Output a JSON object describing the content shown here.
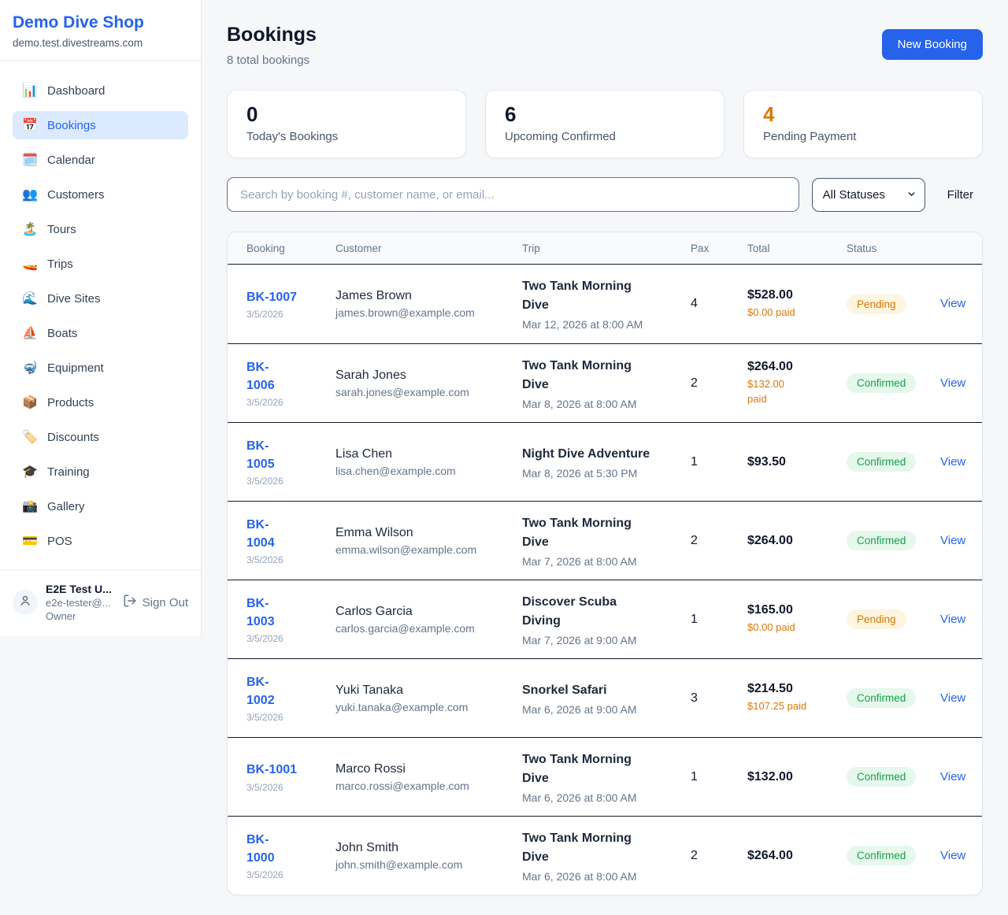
{
  "sidebar": {
    "brand": "Demo Dive Shop",
    "domain": "demo.test.divestreams.com",
    "items": [
      {
        "slug": "dashboard",
        "icon": "📊",
        "label": "Dashboard",
        "active": false
      },
      {
        "slug": "bookings",
        "icon": "📅",
        "label": "Bookings",
        "active": true
      },
      {
        "slug": "calendar",
        "icon": "🗓️",
        "label": "Calendar",
        "active": false
      },
      {
        "slug": "customers",
        "icon": "👥",
        "label": "Customers",
        "active": false
      },
      {
        "slug": "tours",
        "icon": "🏝️",
        "label": "Tours",
        "active": false
      },
      {
        "slug": "trips",
        "icon": "🚤",
        "label": "Trips",
        "active": false
      },
      {
        "slug": "dive-sites",
        "icon": "🌊",
        "label": "Dive Sites",
        "active": false
      },
      {
        "slug": "boats",
        "icon": "⛵",
        "label": "Boats",
        "active": false
      },
      {
        "slug": "equipment",
        "icon": "🤿",
        "label": "Equipment",
        "active": false
      },
      {
        "slug": "products",
        "icon": "📦",
        "label": "Products",
        "active": false
      },
      {
        "slug": "discounts",
        "icon": "🏷️",
        "label": "Discounts",
        "active": false
      },
      {
        "slug": "training",
        "icon": "🎓",
        "label": "Training",
        "active": false
      },
      {
        "slug": "gallery",
        "icon": "📸",
        "label": "Gallery",
        "active": false
      },
      {
        "slug": "pos",
        "icon": "💳",
        "label": "POS",
        "active": false
      }
    ],
    "user": {
      "name": "E2E Test U...",
      "email": "e2e-tester@...",
      "role": "Owner",
      "sign_out_label": "Sign Out"
    }
  },
  "header": {
    "title": "Bookings",
    "subtitle": "8 total bookings",
    "new_booking_label": "New Booking"
  },
  "stats": [
    {
      "value": "0",
      "label": "Today's Bookings",
      "value_color": "#0f172a"
    },
    {
      "value": "6",
      "label": "Upcoming Confirmed",
      "value_color": "#0f172a"
    },
    {
      "value": "4",
      "label": "Pending Payment",
      "value_color": "#d97706"
    }
  ],
  "filters": {
    "search_placeholder": "Search by booking #, customer name, or email...",
    "status_value": "All Statuses",
    "filter_label": "Filter"
  },
  "table": {
    "columns": [
      "Booking",
      "Customer",
      "Trip",
      "Pax",
      "Total",
      "Status"
    ],
    "view_label": "View",
    "status_styles": {
      "Pending": {
        "bg": "#fdf5df",
        "fg": "#d97706"
      },
      "Confirmed": {
        "bg": "#e6f7ec",
        "fg": "#16a34a"
      }
    },
    "rows": [
      {
        "id": "BK-1007",
        "id_wrapped": false,
        "date": "3/5/2026",
        "customer": "James Brown",
        "email": "james.brown@example.com",
        "trip": "Two Tank Morning Dive",
        "trip_time": "Mar 12, 2026 at 8:00 AM",
        "pax": "4",
        "total": "$528.00",
        "paid": "$0.00 paid",
        "paid_wrapped": false,
        "status": "Pending"
      },
      {
        "id": "BK-1006",
        "id_wrapped": true,
        "date": "3/5/2026",
        "customer": "Sarah Jones",
        "email": "sarah.jones@example.com",
        "trip": "Two Tank Morning Dive",
        "trip_time": "Mar 8, 2026 at 8:00 AM",
        "pax": "2",
        "total": "$264.00",
        "paid": "$132.00 paid",
        "paid_wrapped": true,
        "status": "Confirmed"
      },
      {
        "id": "BK-1005",
        "id_wrapped": true,
        "date": "3/5/2026",
        "customer": "Lisa Chen",
        "email": "lisa.chen@example.com",
        "trip": "Night Dive Adventure",
        "trip_time": "Mar 8, 2026 at 5:30 PM",
        "pax": "1",
        "total": "$93.50",
        "paid": "",
        "paid_wrapped": false,
        "status": "Confirmed"
      },
      {
        "id": "BK-1004",
        "id_wrapped": true,
        "date": "3/5/2026",
        "customer": "Emma Wilson",
        "email": "emma.wilson@example.com",
        "trip": "Two Tank Morning Dive",
        "trip_time": "Mar 7, 2026 at 8:00 AM",
        "pax": "2",
        "total": "$264.00",
        "paid": "",
        "paid_wrapped": false,
        "status": "Confirmed"
      },
      {
        "id": "BK-1003",
        "id_wrapped": true,
        "date": "3/5/2026",
        "customer": "Carlos Garcia",
        "email": "carlos.garcia@example.com",
        "trip": "Discover Scuba Diving",
        "trip_time": "Mar 7, 2026 at 9:00 AM",
        "pax": "1",
        "total": "$165.00",
        "paid": "$0.00 paid",
        "paid_wrapped": false,
        "status": "Pending"
      },
      {
        "id": "BK-1002",
        "id_wrapped": true,
        "date": "3/5/2026",
        "customer": "Yuki Tanaka",
        "email": "yuki.tanaka@example.com",
        "trip": "Snorkel Safari",
        "trip_time": "Mar 6, 2026 at 9:00 AM",
        "pax": "3",
        "total": "$214.50",
        "paid": "$107.25 paid",
        "paid_wrapped": false,
        "status": "Confirmed"
      },
      {
        "id": "BK-1001",
        "id_wrapped": false,
        "date": "3/5/2026",
        "customer": "Marco Rossi",
        "email": "marco.rossi@example.com",
        "trip": "Two Tank Morning Dive",
        "trip_time": "Mar 6, 2026 at 8:00 AM",
        "pax": "1",
        "total": "$132.00",
        "paid": "",
        "paid_wrapped": false,
        "status": "Confirmed"
      },
      {
        "id": "BK-1000",
        "id_wrapped": true,
        "date": "3/5/2026",
        "customer": "John Smith",
        "email": "john.smith@example.com",
        "trip": "Two Tank Morning Dive",
        "trip_time": "Mar 6, 2026 at 8:00 AM",
        "pax": "2",
        "total": "$264.00",
        "paid": "",
        "paid_wrapped": false,
        "status": "Confirmed"
      }
    ]
  },
  "colors": {
    "accent": "#2563eb",
    "pending": "#d97706",
    "confirmed": "#16a34a",
    "active_nav_bg": "#dbeafe"
  }
}
